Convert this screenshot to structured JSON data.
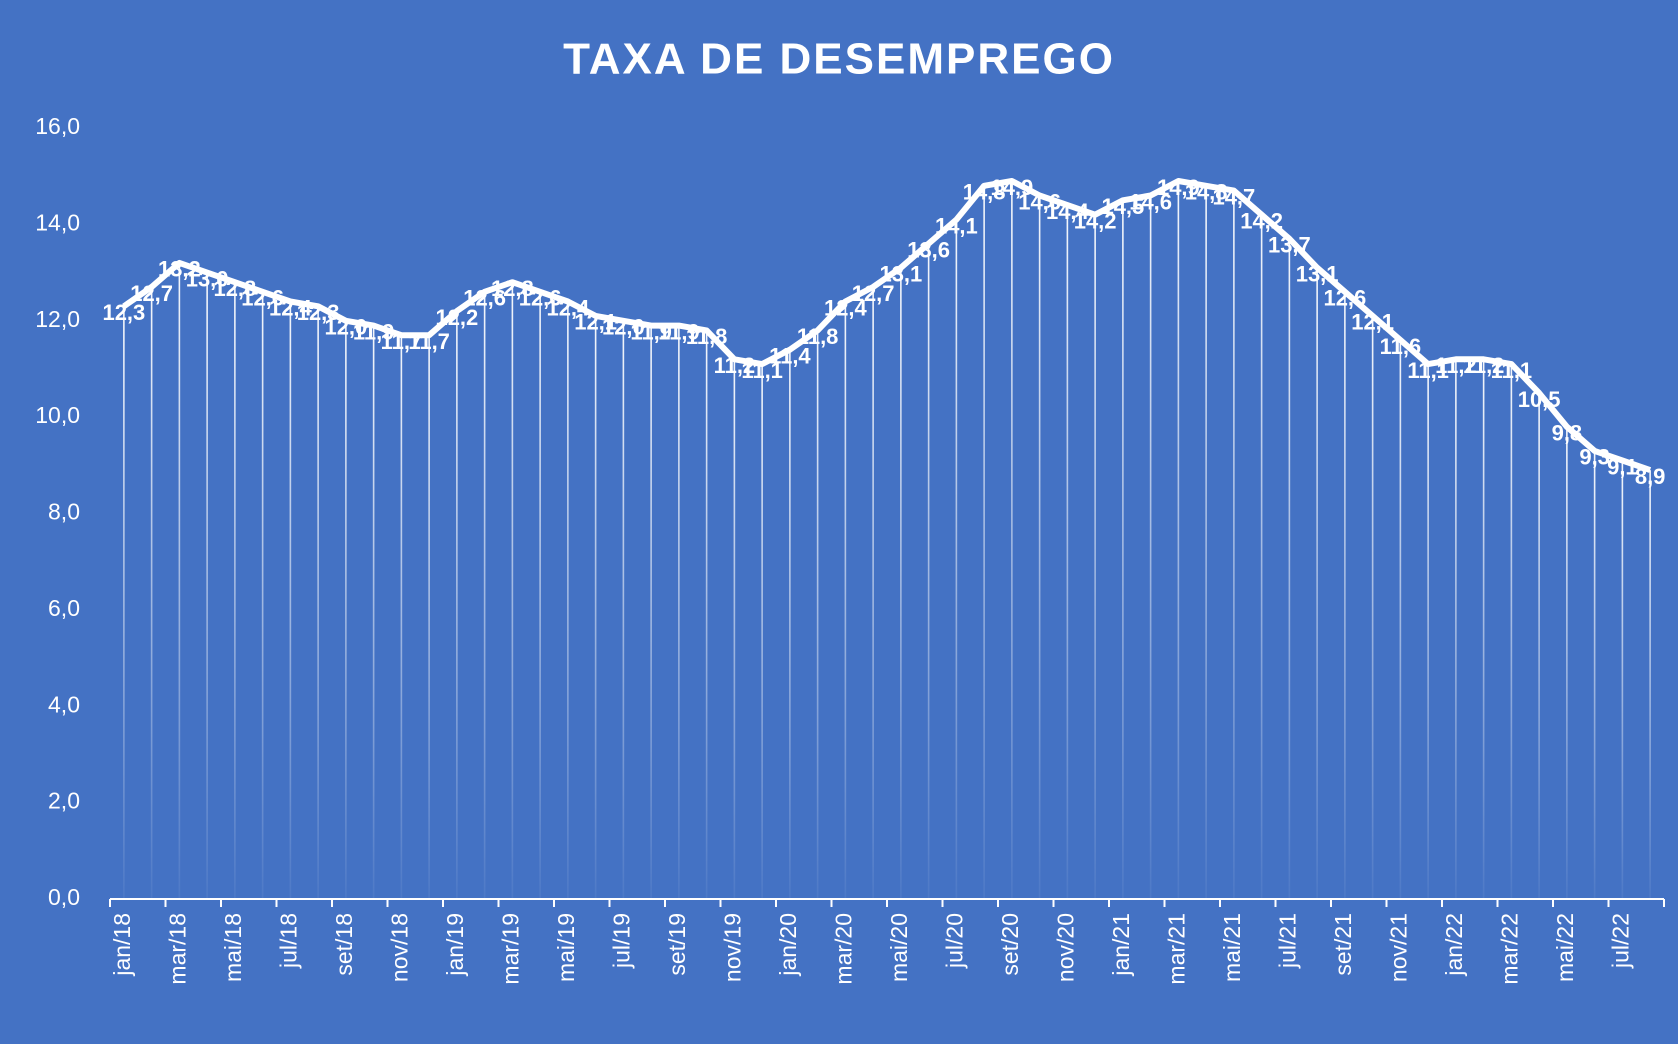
{
  "chart_data": {
    "type": "line",
    "title": "TAXA DE DESEMPREGO",
    "categories": [
      "jan/18",
      null,
      "mar/18",
      null,
      "mai/18",
      null,
      "jul/18",
      null,
      "set/18",
      null,
      "nov/18",
      null,
      "jan/19",
      null,
      "mar/19",
      null,
      "mai/19",
      null,
      "jul/19",
      null,
      "set/19",
      null,
      "nov/19",
      null,
      "jan/20",
      null,
      "mar/20",
      null,
      "mai/20",
      null,
      "jul/20",
      null,
      "set/20",
      null,
      "nov/20",
      null,
      "jan/21",
      null,
      "mar/21",
      null,
      "mai/21",
      null,
      "jul/21",
      null,
      "set/21",
      null,
      "nov/21",
      null,
      "jan/22",
      null,
      "mar/22",
      null,
      "mai/22",
      null,
      "jul/22",
      null
    ],
    "values": [
      12.3,
      12.7,
      13.2,
      13.0,
      12.8,
      12.6,
      12.4,
      12.3,
      12.0,
      11.9,
      11.7,
      11.7,
      12.2,
      12.6,
      12.8,
      12.6,
      12.4,
      12.1,
      12.0,
      11.9,
      11.9,
      11.8,
      11.2,
      11.1,
      11.4,
      11.8,
      12.4,
      12.7,
      13.1,
      13.6,
      14.1,
      14.8,
      14.9,
      14.6,
      14.4,
      14.2,
      14.5,
      14.6,
      14.9,
      14.8,
      14.7,
      14.2,
      13.7,
      13.1,
      12.6,
      12.1,
      11.6,
      11.1,
      11.2,
      11.2,
      11.1,
      10.5,
      9.8,
      9.3,
      9.1,
      8.9
    ],
    "value_labels": [
      "12,3",
      "12,7",
      "13,2",
      "13,0",
      "12,8",
      "12,6",
      "12,4",
      "12,3",
      "12,0",
      "11,9",
      "11,7",
      "11,7",
      "12,2",
      "12,6",
      "12,8",
      "12,6",
      "12,4",
      "12,1",
      "12,0",
      "11,9",
      "11,9",
      "11,8",
      "11,2",
      "11,1",
      "11,4",
      "11,8",
      "12,4",
      "12,7",
      "13,1",
      "13,6",
      "14,1",
      "14,8",
      "14,9",
      "14,6",
      "14,4",
      "14,2",
      "14,5",
      "14,6",
      "14,9",
      "14,8",
      "14,7",
      "14,2",
      "13,7",
      "13,1",
      "12,6",
      "12,1",
      "11,6",
      "11,1",
      "11,2",
      "11,2",
      "11,1",
      "10,5",
      "9,8",
      "9,3",
      "9,1",
      "8,9"
    ],
    "color": "#ffffff",
    "ylim": [
      0,
      16
    ],
    "yticks": [
      {
        "value": 0,
        "label": "0,0"
      },
      {
        "value": 2,
        "label": "2,0"
      },
      {
        "value": 4,
        "label": "4,0"
      },
      {
        "value": 6,
        "label": "6,0"
      },
      {
        "value": 8,
        "label": "8,0"
      },
      {
        "value": 10,
        "label": "10,0"
      },
      {
        "value": 12,
        "label": "12,0"
      },
      {
        "value": 14,
        "label": "14,0"
      },
      {
        "value": 16,
        "label": "16,0"
      }
    ]
  }
}
